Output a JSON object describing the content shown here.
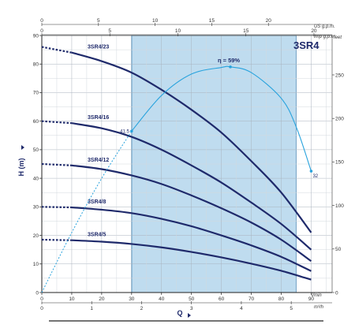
{
  "chart_data": {
    "type": "line",
    "model": "3SR4",
    "xlabel": "Q",
    "ylabel": "H (m)",
    "x_unit": "l/min",
    "x_unit_m3": "m³/h",
    "top_unit_us": "US g.p.m.",
    "top_unit_imp": "Imp g.p.m.",
    "right_unit": "feet",
    "xlim": [
      0,
      97
    ],
    "ylim": [
      0,
      90
    ],
    "x_ticks": [
      "0",
      "10",
      "20",
      "30",
      "40",
      "50",
      "60",
      "70",
      "80",
      "90"
    ],
    "y_ticks": [
      "0",
      "10",
      "20",
      "30",
      "40",
      "50",
      "60",
      "70",
      "80",
      "90"
    ],
    "m3_ticks": [
      "0",
      "1",
      "2",
      "3",
      "4",
      "5"
    ],
    "us_ticks": [
      "0",
      "5",
      "10",
      "15",
      "20"
    ],
    "imp_ticks": [
      "0",
      "5",
      "10",
      "15",
      "20"
    ],
    "feet_ticks": [
      "0",
      "50",
      "100",
      "150",
      "200",
      "250"
    ],
    "operating_range": [
      30,
      85
    ],
    "series": [
      {
        "name": "3SR4/23",
        "dashed_until": 10,
        "x": [
          0,
          10,
          20,
          30,
          40,
          50,
          60,
          70,
          80,
          90
        ],
        "y": [
          86,
          84,
          81,
          77,
          71,
          64,
          56,
          46,
          35,
          21
        ]
      },
      {
        "name": "3SR4/16",
        "dashed_until": 10,
        "x": [
          0,
          10,
          20,
          30,
          40,
          50,
          60,
          70,
          80,
          90
        ],
        "y": [
          60,
          59.3,
          57.5,
          54.5,
          50,
          44.5,
          38.5,
          31.5,
          24,
          15
        ]
      },
      {
        "name": "3SR4/12",
        "dashed_until": 10,
        "x": [
          0,
          10,
          20,
          30,
          40,
          50,
          60,
          70,
          80,
          90
        ],
        "y": [
          45,
          44.5,
          43.2,
          41,
          38,
          34,
          29.5,
          24.5,
          18.5,
          11
        ]
      },
      {
        "name": "3SR4/8",
        "dashed_until": 10,
        "x": [
          0,
          10,
          20,
          30,
          40,
          50,
          60,
          70,
          80,
          90
        ],
        "y": [
          30,
          29.8,
          29,
          27.8,
          25.8,
          23.2,
          20,
          16.5,
          12.5,
          7.5
        ]
      },
      {
        "name": "3SR4/5",
        "dashed_until": 10,
        "x": [
          0,
          10,
          20,
          30,
          40,
          50,
          60,
          70,
          80,
          90
        ],
        "y": [
          18.5,
          18.3,
          17.8,
          17,
          15.8,
          14.2,
          12.3,
          10.1,
          7.6,
          4.5
        ]
      }
    ],
    "efficiency": {
      "label": "η = 59%",
      "solid_from": 30,
      "x": [
        0,
        10,
        20,
        30,
        40,
        50,
        60,
        63,
        70,
        80,
        85,
        90
      ],
      "y": [
        0,
        21,
        40,
        56.5,
        69,
        76.5,
        78.8,
        79,
        77,
        68,
        58,
        42.5
      ],
      "point_left_label": "41.5",
      "point_left": [
        30,
        56.5
      ],
      "point_peak": [
        63,
        79
      ],
      "point_right_label": "32",
      "point_right": [
        90,
        42.5
      ]
    }
  }
}
